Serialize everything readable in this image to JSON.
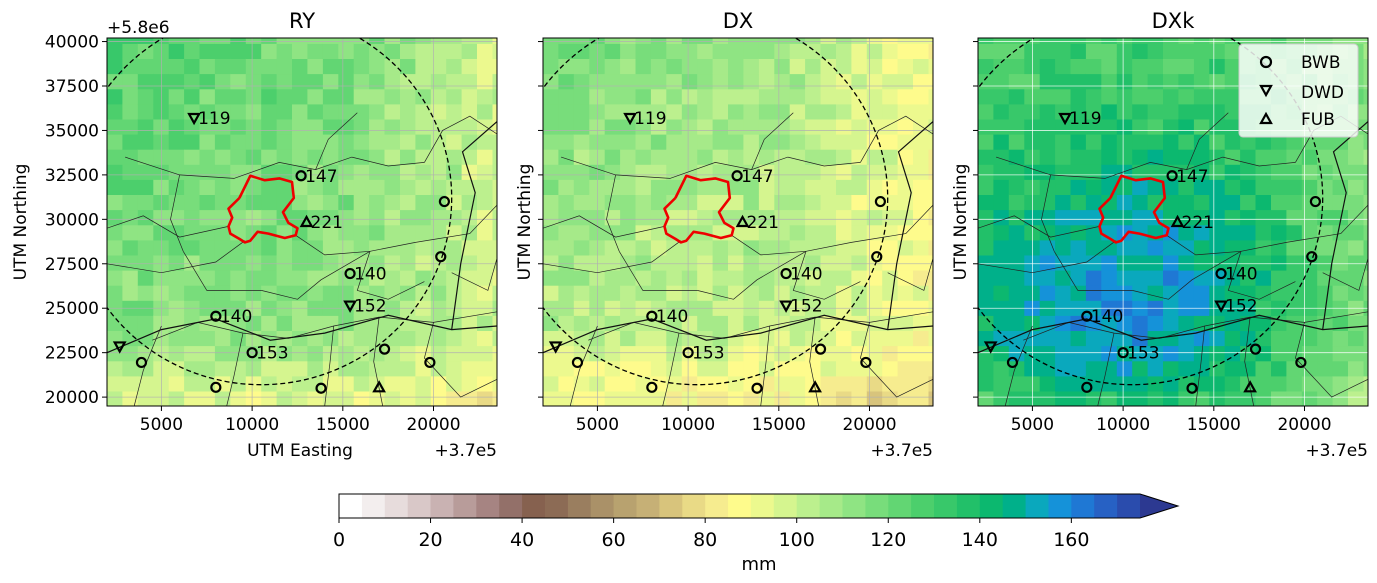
{
  "chart_data": [
    {
      "type": "heatmap",
      "title": "RY",
      "xlabel": "UTM Easting",
      "ylabel": "UTM Northing",
      "xlim": [
        372000,
        393500
      ],
      "ylim": [
        5819500,
        5840200
      ],
      "x_ticks": [
        5000,
        10000,
        15000,
        20000
      ],
      "x_tick_labels": [
        "5000",
        "10000",
        "15000",
        "20000"
      ],
      "x_offset_label": "+3.7e5",
      "y_ticks": [
        20000,
        22500,
        25000,
        27500,
        30000,
        32500,
        35000,
        37500,
        40000
      ],
      "y_tick_labels": [
        "20000",
        "22500",
        "25000",
        "27500",
        "30000",
        "32500",
        "35000",
        "37500",
        "40000"
      ],
      "y_offset_label": "+5.8e6",
      "grid": true,
      "field_mm": {
        "min": 60,
        "max": 140,
        "typical": 110
      }
    },
    {
      "type": "heatmap",
      "title": "DX",
      "xlabel": "",
      "ylabel": "UTM Northing",
      "xlim": [
        372000,
        393500
      ],
      "ylim": [
        5819500,
        5840200
      ],
      "x_ticks": [
        5000,
        10000,
        15000,
        20000
      ],
      "x_tick_labels": [
        "5000",
        "10000",
        "15000",
        "20000"
      ],
      "x_offset_label": "+3.7e5",
      "grid": true,
      "field_mm": {
        "min": 55,
        "max": 125,
        "typical": 100
      }
    },
    {
      "type": "heatmap",
      "title": "DXk",
      "xlabel": "",
      "ylabel": "UTM Northing",
      "xlim": [
        372000,
        393500
      ],
      "ylim": [
        5819500,
        5840200
      ],
      "x_ticks": [
        5000,
        10000,
        15000,
        20000
      ],
      "x_tick_labels": [
        "5000",
        "10000",
        "15000",
        "20000"
      ],
      "x_offset_label": "+3.7e5",
      "grid": true,
      "legend": {
        "placement": "top-right",
        "entries": [
          {
            "label": "BWB",
            "marker": "circle"
          },
          {
            "label": "DWD",
            "marker": "triangle-down"
          },
          {
            "label": "FUB",
            "marker": "triangle-up"
          }
        ]
      },
      "field_mm": {
        "min": 70,
        "max": 170,
        "typical": 135
      }
    }
  ],
  "stations": [
    {
      "network": "DWD",
      "x": 6800,
      "y": 35700,
      "label": "119"
    },
    {
      "network": "BWB",
      "x": 12700,
      "y": 32450,
      "label": "147"
    },
    {
      "network": "FUB",
      "x": 13000,
      "y": 29850,
      "label": "221"
    },
    {
      "network": "BWB",
      "x": 15400,
      "y": 26950,
      "label": "140"
    },
    {
      "network": "DWD",
      "x": 15400,
      "y": 25150,
      "label": "152"
    },
    {
      "network": "BWB",
      "x": 8000,
      "y": 24550,
      "label": "140"
    },
    {
      "network": "BWB",
      "x": 10000,
      "y": 22500,
      "label": "153"
    },
    {
      "network": "DWD",
      "x": 2700,
      "y": 22850,
      "label": ""
    },
    {
      "network": "BWB",
      "x": 3900,
      "y": 21950,
      "label": ""
    },
    {
      "network": "BWB",
      "x": 8000,
      "y": 20550,
      "label": ""
    },
    {
      "network": "BWB",
      "x": 13800,
      "y": 20500,
      "label": ""
    },
    {
      "network": "FUB",
      "x": 17000,
      "y": 20550,
      "label": ""
    },
    {
      "network": "BWB",
      "x": 17300,
      "y": 22700,
      "label": ""
    },
    {
      "network": "BWB",
      "x": 19800,
      "y": 21950,
      "label": ""
    },
    {
      "network": "BWB",
      "x": 20400,
      "y": 27900,
      "label": ""
    },
    {
      "network": "BWB",
      "x": 20600,
      "y": 31000,
      "label": ""
    }
  ],
  "catchment_outline": [
    [
      9300,
      31200
    ],
    [
      9900,
      32450
    ],
    [
      10700,
      32200
    ],
    [
      11500,
      32300
    ],
    [
      12200,
      32100
    ],
    [
      12300,
      31200
    ],
    [
      11700,
      30400
    ],
    [
      12000,
      29800
    ],
    [
      12500,
      29500
    ],
    [
      12400,
      29100
    ],
    [
      11800,
      28950
    ],
    [
      10900,
      29200
    ],
    [
      10300,
      29300
    ],
    [
      9900,
      28800
    ],
    [
      9600,
      28700
    ],
    [
      9300,
      28900
    ],
    [
      8800,
      29200
    ],
    [
      8700,
      29600
    ],
    [
      8900,
      30100
    ],
    [
      8700,
      30600
    ],
    [
      9300,
      31200
    ]
  ],
  "range_circle": {
    "cx": 10500,
    "cy": 31200,
    "r": 10500
  },
  "colorbar": {
    "label": "mm",
    "min": 0,
    "max": 175,
    "step": 5,
    "ticks": [
      0,
      20,
      40,
      60,
      80,
      100,
      120,
      140,
      160
    ],
    "extend": "max",
    "colors": [
      "#ffffff",
      "#f3eeee",
      "#e7dcdc",
      "#d9c8c8",
      "#c9b2b2",
      "#b89c9a",
      "#a68482",
      "#937069",
      "#86614f",
      "#8c6b55",
      "#9a7e5f",
      "#aa9168",
      "#b8a26f",
      "#c6b076",
      "#d8c47c",
      "#e9da86",
      "#f6ec8f",
      "#fefb8c",
      "#ecf98e",
      "#d5f58f",
      "#bcf08e",
      "#a6ea89",
      "#8fe483",
      "#78dd7b",
      "#62d673",
      "#4ccf6c",
      "#38c86a",
      "#22c069",
      "#0cb86f",
      "#00b08a",
      "#0aa8bd",
      "#1592d9",
      "#1f78d4",
      "#2761c4",
      "#2a4cad",
      "#2c3991"
    ]
  }
}
